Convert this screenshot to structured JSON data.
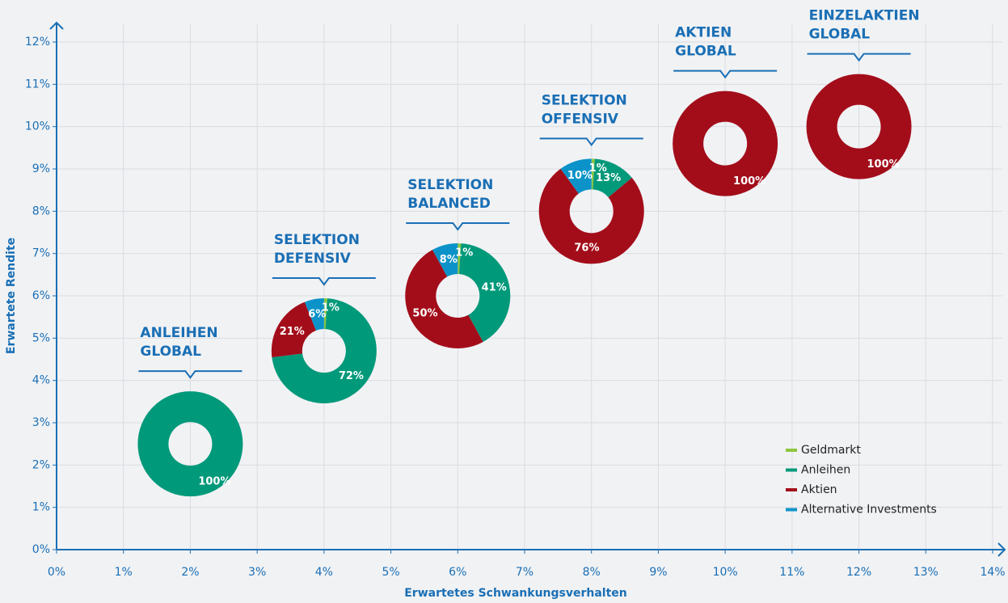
{
  "chart_data": {
    "type": "donut-scatter",
    "xlabel": "Erwartetes Schwankungsverhalten",
    "ylabel": "Erwartete Rendite",
    "xlim": [
      0,
      14
    ],
    "ylim": [
      0,
      12
    ],
    "xticks": [
      {
        "value": 0,
        "label": "0%"
      },
      {
        "value": 1,
        "label": "1%"
      },
      {
        "value": 2,
        "label": "2%"
      },
      {
        "value": 3,
        "label": "3%"
      },
      {
        "value": 4,
        "label": "4%"
      },
      {
        "value": 5,
        "label": "5%"
      },
      {
        "value": 6,
        "label": "6%"
      },
      {
        "value": 7,
        "label": "7%"
      },
      {
        "value": 8,
        "label": "8%"
      },
      {
        "value": 9,
        "label": "9%"
      },
      {
        "value": 10,
        "label": "10%"
      },
      {
        "value": 11,
        "label": "11%"
      },
      {
        "value": 12,
        "label": "12%"
      },
      {
        "value": 13,
        "label": "13%"
      },
      {
        "value": 14,
        "label": "14%"
      }
    ],
    "yticks": [
      {
        "value": 0,
        "label": "0%"
      },
      {
        "value": 1,
        "label": "1%"
      },
      {
        "value": 2,
        "label": "2%"
      },
      {
        "value": 3,
        "label": "3%"
      },
      {
        "value": 4,
        "label": "4%"
      },
      {
        "value": 5,
        "label": "5%"
      },
      {
        "value": 6,
        "label": "6%"
      },
      {
        "value": 7,
        "label": "7%"
      },
      {
        "value": 8,
        "label": "8%"
      },
      {
        "value": 9,
        "label": "9%"
      },
      {
        "value": 10,
        "label": "10%"
      },
      {
        "value": 11,
        "label": "11%"
      },
      {
        "value": 12,
        "label": "12%"
      }
    ],
    "grid": true,
    "legend": "lower right",
    "labels": [
      [
        "ANLEIHEN",
        "GLOBAL"
      ],
      [
        "SELEKTION",
        "DEFENSIV"
      ],
      [
        "SELEKTION",
        "BALANCED"
      ],
      [
        "SELEKTION",
        "OFFENSIV"
      ],
      [
        "AKTIEN",
        "GLOBAL"
      ],
      [
        "EINZELAKTIEN",
        "GLOBAL"
      ]
    ],
    "x": [
      2,
      4,
      6,
      8,
      10,
      12
    ],
    "y": [
      2.5,
      4.7,
      6.0,
      8.0,
      9.6,
      10.0
    ],
    "series": [
      {
        "name": "Geldmarkt",
        "color": "#8dc63f",
        "values": [
          0,
          1,
          1,
          1,
          0,
          0
        ],
        "value_labels": [
          null,
          "1%",
          "1%",
          "1%",
          null,
          null
        ]
      },
      {
        "name": "Anleihen",
        "color": "#00997a",
        "values": [
          100,
          72,
          41,
          13,
          0,
          0
        ],
        "value_labels": [
          "100%",
          "72%",
          "41%",
          "13%",
          null,
          null
        ]
      },
      {
        "name": "Aktien",
        "color": "#a30d1a",
        "values": [
          0,
          21,
          50,
          76,
          100,
          100
        ],
        "value_labels": [
          null,
          "21%",
          "50%",
          "76%",
          "100%",
          "100%"
        ]
      },
      {
        "name": "Alternative Investments",
        "color": "#0b93c9",
        "values": [
          0,
          6,
          8,
          10,
          0,
          0
        ],
        "value_labels": [
          null,
          "6%",
          "8%",
          "10%",
          null,
          null
        ]
      }
    ]
  }
}
